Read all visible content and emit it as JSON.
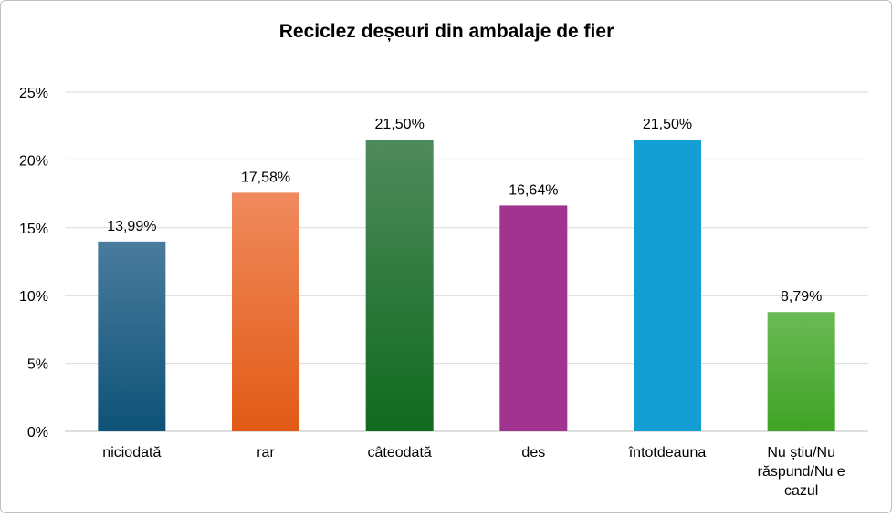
{
  "chart_data": {
    "type": "bar",
    "title": "Reciclez deșeuri din ambalaje de fier",
    "categories": [
      "niciodată",
      "rar",
      "câteodată",
      "des",
      "întotdeauna",
      "Nu știu/Nu răspund/Nu e cazul"
    ],
    "category_lines": [
      [
        "niciodată"
      ],
      [
        "rar"
      ],
      [
        "câteodată"
      ],
      [
        "des"
      ],
      [
        "întotdeauna"
      ],
      [
        "Nu știu/Nu",
        "răspund/Nu e",
        "cazul"
      ]
    ],
    "values": [
      13.99,
      17.58,
      21.5,
      16.64,
      21.5,
      8.79
    ],
    "data_labels": [
      "13,99%",
      "17,58%",
      "21,50%",
      "16,64%",
      "21,50%",
      "8,79%"
    ],
    "ylim": [
      0,
      25
    ],
    "y_ticks": [
      0,
      5,
      10,
      15,
      20,
      25
    ],
    "y_tick_labels": [
      "0%",
      "5%",
      "10%",
      "15%",
      "20%",
      "25%"
    ],
    "grid": true,
    "legend": "none",
    "bar_colors": [
      [
        "#4a7b9d",
        "#0d5377"
      ],
      [
        "#f08a5d",
        "#e25a16"
      ],
      [
        "#4f8a5c",
        "#0f6a1e"
      ],
      [
        "#a0348f",
        "#a0348f"
      ],
      [
        "#139ed4",
        "#139ed4"
      ],
      [
        "#6bba55",
        "#3fa325"
      ]
    ],
    "grid_color": "#d9d9d9",
    "axis_color": "#bfbfbf",
    "text_color": "#000000"
  }
}
